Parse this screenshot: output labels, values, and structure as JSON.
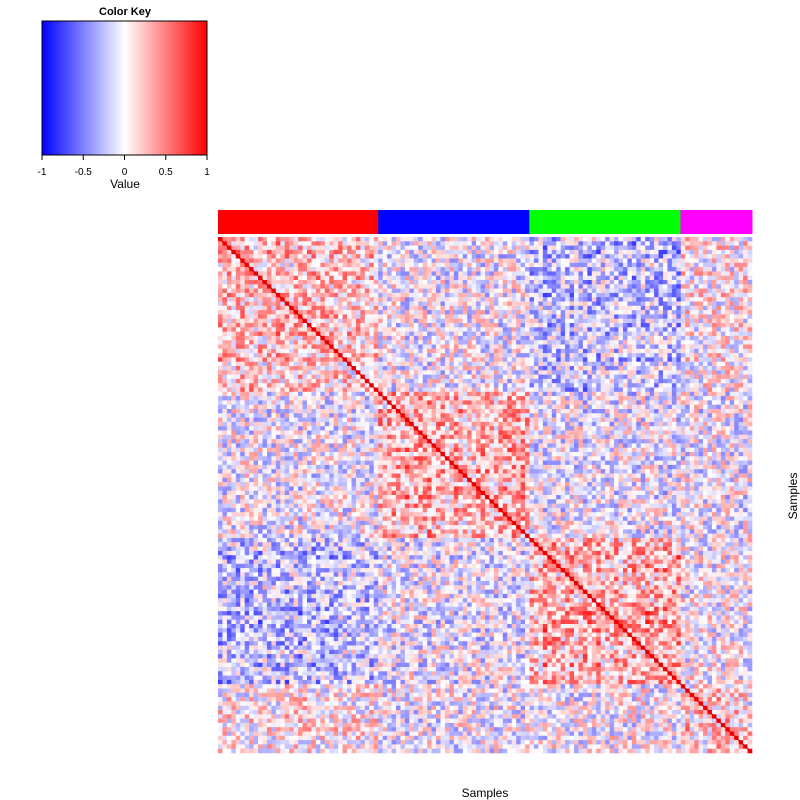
{
  "chart_data": {
    "type": "heatmap",
    "color_key": {
      "title": "Color Key",
      "xlabel": "Value",
      "range": [
        -1,
        1
      ],
      "ticks": [
        "-1",
        "-0.5",
        "0",
        "0.5",
        "1"
      ],
      "tick_values": [
        -1,
        -0.5,
        0,
        0.5,
        1
      ],
      "colors": {
        "low": "#0000ff",
        "mid": "#ffffff",
        "high": "#ff0000"
      }
    },
    "xlabel": "Samples",
    "ylabel": "Samples",
    "groups": [
      {
        "color": "#ff0000",
        "fraction": 0.3
      },
      {
        "color": "#0000ff",
        "fraction": 0.283
      },
      {
        "color": "#00ff00",
        "fraction": 0.283
      },
      {
        "color": "#ff00ff",
        "fraction": 0.134
      }
    ],
    "block_correlation": [
      [
        0.35,
        -0.05,
        -0.35,
        0.1
      ],
      [
        -0.05,
        0.45,
        -0.1,
        -0.05
      ],
      [
        -0.35,
        -0.1,
        0.5,
        0.0
      ],
      [
        0.1,
        -0.05,
        0.0,
        0.25
      ]
    ],
    "diagonal_value": 1
  }
}
